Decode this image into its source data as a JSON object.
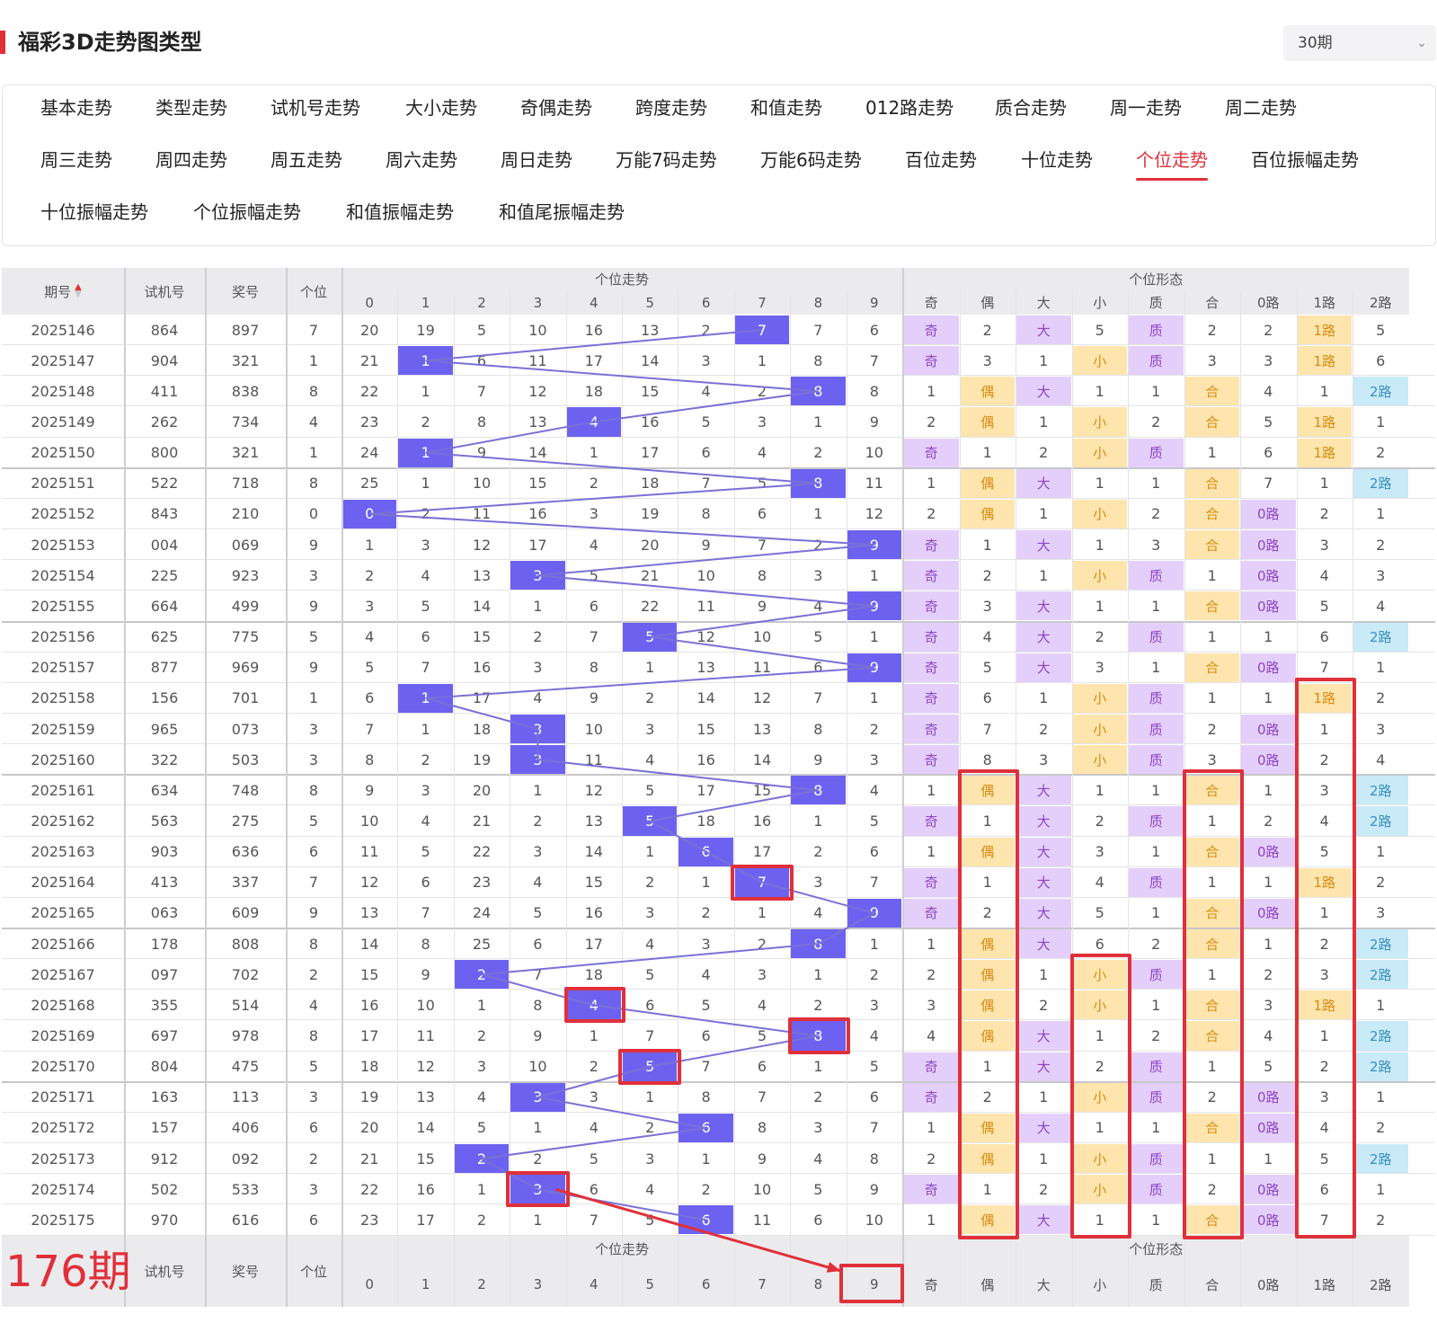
{
  "title": "福彩3D走势图类型",
  "period_select": {
    "value": "30期",
    "icon": "chevron-down-icon"
  },
  "tabs": {
    "items": [
      "基本走势",
      "类型走势",
      "试机号走势",
      "大小走势",
      "奇偶走势",
      "跨度走势",
      "和值走势",
      "012路走势",
      "质合走势",
      "周一走势",
      "周二走势",
      "周三走势",
      "周四走势",
      "周五走势",
      "周六走势",
      "周日走势",
      "万能7码走势",
      "万能6码走势",
      "百位走势",
      "十位走势",
      "个位走势",
      "百位振幅走势",
      "十位振幅走势",
      "个位振幅走势",
      "和值振幅走势",
      "和值尾振幅走势"
    ],
    "active": "个位走势"
  },
  "colors": {
    "accent": "#e0303a",
    "ball": "#6d62f0",
    "purple": "#e4cffa",
    "orange": "#fde5ad",
    "blue": "#c9eaf7"
  },
  "table": {
    "header": {
      "period": "期号",
      "sort_icon": "sort-arrows-icon",
      "test": "试机号",
      "prize": "奖号",
      "unit": "个位",
      "trend_group": "个位走势",
      "digits": [
        "0",
        "1",
        "2",
        "3",
        "4",
        "5",
        "6",
        "7",
        "8",
        "9"
      ],
      "form_group": "个位形态",
      "form_cols": [
        "奇",
        "偶",
        "大",
        "小",
        "质",
        "合",
        "0路",
        "1路",
        "2路"
      ]
    },
    "footer": {
      "count": "176期",
      "test": "试机号",
      "prize": "奖号",
      "unit": "个位",
      "trend_group": "个位走势",
      "digits": [
        "0",
        "1",
        "2",
        "3",
        "4",
        "5",
        "6",
        "7",
        "8",
        "9"
      ],
      "form_group": "个位形态",
      "form_cols": [
        "奇",
        "偶",
        "大",
        "小",
        "质",
        "合",
        "0路",
        "1路",
        "2路"
      ]
    },
    "rows": [
      {
        "p": "2025146",
        "t": "864",
        "z": "897",
        "u": "7",
        "d": [
          "20",
          "19",
          "5",
          "10",
          "16",
          "13",
          "2",
          "7",
          "7",
          "6"
        ],
        "f": [
          "奇",
          "2",
          "大",
          "5",
          "质",
          "2",
          "2",
          "1路",
          "5"
        ]
      },
      {
        "p": "2025147",
        "t": "904",
        "z": "321",
        "u": "1",
        "d": [
          "21",
          "1",
          "6",
          "11",
          "17",
          "14",
          "3",
          "1",
          "8",
          "7"
        ],
        "f": [
          "奇",
          "3",
          "1",
          "小",
          "质",
          "3",
          "3",
          "1路",
          "6"
        ]
      },
      {
        "p": "2025148",
        "t": "411",
        "z": "838",
        "u": "8",
        "d": [
          "22",
          "1",
          "7",
          "12",
          "18",
          "15",
          "4",
          "2",
          "8",
          "8"
        ],
        "f": [
          "1",
          "偶",
          "大",
          "1",
          "1",
          "合",
          "4",
          "1",
          "2路"
        ]
      },
      {
        "p": "2025149",
        "t": "262",
        "z": "734",
        "u": "4",
        "d": [
          "23",
          "2",
          "8",
          "13",
          "4",
          "16",
          "5",
          "3",
          "1",
          "9"
        ],
        "f": [
          "2",
          "偶",
          "1",
          "小",
          "2",
          "合",
          "5",
          "1路",
          "1"
        ]
      },
      {
        "p": "2025150",
        "t": "800",
        "z": "321",
        "u": "1",
        "d": [
          "24",
          "1",
          "9",
          "14",
          "1",
          "17",
          "6",
          "4",
          "2",
          "10"
        ],
        "f": [
          "奇",
          "1",
          "2",
          "小",
          "质",
          "1",
          "6",
          "1路",
          "2"
        ]
      },
      {
        "p": "2025151",
        "t": "522",
        "z": "718",
        "u": "8",
        "d": [
          "25",
          "1",
          "10",
          "15",
          "2",
          "18",
          "7",
          "5",
          "8",
          "11"
        ],
        "f": [
          "1",
          "偶",
          "大",
          "1",
          "1",
          "合",
          "7",
          "1",
          "2路"
        ]
      },
      {
        "p": "2025152",
        "t": "843",
        "z": "210",
        "u": "0",
        "d": [
          "0",
          "2",
          "11",
          "16",
          "3",
          "19",
          "8",
          "6",
          "1",
          "12"
        ],
        "f": [
          "2",
          "偶",
          "1",
          "小",
          "2",
          "合",
          "0路",
          "2",
          "1"
        ]
      },
      {
        "p": "2025153",
        "t": "004",
        "z": "069",
        "u": "9",
        "d": [
          "1",
          "3",
          "12",
          "17",
          "4",
          "20",
          "9",
          "7",
          "2",
          "9"
        ],
        "f": [
          "奇",
          "1",
          "大",
          "1",
          "3",
          "合",
          "0路",
          "3",
          "2"
        ]
      },
      {
        "p": "2025154",
        "t": "225",
        "z": "923",
        "u": "3",
        "d": [
          "2",
          "4",
          "13",
          "3",
          "5",
          "21",
          "10",
          "8",
          "3",
          "1"
        ],
        "f": [
          "奇",
          "2",
          "1",
          "小",
          "质",
          "1",
          "0路",
          "4",
          "3"
        ]
      },
      {
        "p": "2025155",
        "t": "664",
        "z": "499",
        "u": "9",
        "d": [
          "3",
          "5",
          "14",
          "1",
          "6",
          "22",
          "11",
          "9",
          "4",
          "9"
        ],
        "f": [
          "奇",
          "3",
          "大",
          "1",
          "1",
          "合",
          "0路",
          "5",
          "4"
        ]
      },
      {
        "p": "2025156",
        "t": "625",
        "z": "775",
        "u": "5",
        "d": [
          "4",
          "6",
          "15",
          "2",
          "7",
          "5",
          "12",
          "10",
          "5",
          "1"
        ],
        "f": [
          "奇",
          "4",
          "大",
          "2",
          "质",
          "1",
          "1",
          "6",
          "2路"
        ]
      },
      {
        "p": "2025157",
        "t": "877",
        "z": "969",
        "u": "9",
        "d": [
          "5",
          "7",
          "16",
          "3",
          "8",
          "1",
          "13",
          "11",
          "6",
          "9"
        ],
        "f": [
          "奇",
          "5",
          "大",
          "3",
          "1",
          "合",
          "0路",
          "7",
          "1"
        ]
      },
      {
        "p": "2025158",
        "t": "156",
        "z": "701",
        "u": "1",
        "d": [
          "6",
          "1",
          "17",
          "4",
          "9",
          "2",
          "14",
          "12",
          "7",
          "1"
        ],
        "f": [
          "奇",
          "6",
          "1",
          "小",
          "质",
          "1",
          "1",
          "1路",
          "2"
        ]
      },
      {
        "p": "2025159",
        "t": "965",
        "z": "073",
        "u": "3",
        "d": [
          "7",
          "1",
          "18",
          "3",
          "10",
          "3",
          "15",
          "13",
          "8",
          "2"
        ],
        "f": [
          "奇",
          "7",
          "2",
          "小",
          "质",
          "2",
          "0路",
          "1",
          "3"
        ]
      },
      {
        "p": "2025160",
        "t": "322",
        "z": "503",
        "u": "3",
        "d": [
          "8",
          "2",
          "19",
          "3",
          "11",
          "4",
          "16",
          "14",
          "9",
          "3"
        ],
        "f": [
          "奇",
          "8",
          "3",
          "小",
          "质",
          "3",
          "0路",
          "2",
          "4"
        ]
      },
      {
        "p": "2025161",
        "t": "634",
        "z": "748",
        "u": "8",
        "d": [
          "9",
          "3",
          "20",
          "1",
          "12",
          "5",
          "17",
          "15",
          "8",
          "4"
        ],
        "f": [
          "1",
          "偶",
          "大",
          "1",
          "1",
          "合",
          "1",
          "3",
          "2路"
        ]
      },
      {
        "p": "2025162",
        "t": "563",
        "z": "275",
        "u": "5",
        "d": [
          "10",
          "4",
          "21",
          "2",
          "13",
          "5",
          "18",
          "16",
          "1",
          "5"
        ],
        "f": [
          "奇",
          "1",
          "大",
          "2",
          "质",
          "1",
          "2",
          "4",
          "2路"
        ]
      },
      {
        "p": "2025163",
        "t": "903",
        "z": "636",
        "u": "6",
        "d": [
          "11",
          "5",
          "22",
          "3",
          "14",
          "1",
          "6",
          "17",
          "2",
          "6"
        ],
        "f": [
          "1",
          "偶",
          "大",
          "3",
          "1",
          "合",
          "0路",
          "5",
          "1"
        ]
      },
      {
        "p": "2025164",
        "t": "413",
        "z": "337",
        "u": "7",
        "d": [
          "12",
          "6",
          "23",
          "4",
          "15",
          "2",
          "1",
          "7",
          "3",
          "7"
        ],
        "f": [
          "奇",
          "1",
          "大",
          "4",
          "质",
          "1",
          "1",
          "1路",
          "2"
        ]
      },
      {
        "p": "2025165",
        "t": "063",
        "z": "609",
        "u": "9",
        "d": [
          "13",
          "7",
          "24",
          "5",
          "16",
          "3",
          "2",
          "1",
          "4",
          "9"
        ],
        "f": [
          "奇",
          "2",
          "大",
          "5",
          "1",
          "合",
          "0路",
          "1",
          "3"
        ]
      },
      {
        "p": "2025166",
        "t": "178",
        "z": "808",
        "u": "8",
        "d": [
          "14",
          "8",
          "25",
          "6",
          "17",
          "4",
          "3",
          "2",
          "8",
          "1"
        ],
        "f": [
          "1",
          "偶",
          "大",
          "6",
          "2",
          "合",
          "1",
          "2",
          "2路"
        ]
      },
      {
        "p": "2025167",
        "t": "097",
        "z": "702",
        "u": "2",
        "d": [
          "15",
          "9",
          "2",
          "7",
          "18",
          "5",
          "4",
          "3",
          "1",
          "2"
        ],
        "f": [
          "2",
          "偶",
          "1",
          "小",
          "质",
          "1",
          "2",
          "3",
          "2路"
        ]
      },
      {
        "p": "2025168",
        "t": "355",
        "z": "514",
        "u": "4",
        "d": [
          "16",
          "10",
          "1",
          "8",
          "4",
          "6",
          "5",
          "4",
          "2",
          "3"
        ],
        "f": [
          "3",
          "偶",
          "2",
          "小",
          "1",
          "合",
          "3",
          "1路",
          "1"
        ]
      },
      {
        "p": "2025169",
        "t": "697",
        "z": "978",
        "u": "8",
        "d": [
          "17",
          "11",
          "2",
          "9",
          "1",
          "7",
          "6",
          "5",
          "8",
          "4"
        ],
        "f": [
          "4",
          "偶",
          "大",
          "1",
          "2",
          "合",
          "4",
          "1",
          "2路"
        ]
      },
      {
        "p": "2025170",
        "t": "804",
        "z": "475",
        "u": "5",
        "d": [
          "18",
          "12",
          "3",
          "10",
          "2",
          "5",
          "7",
          "6",
          "1",
          "5"
        ],
        "f": [
          "奇",
          "1",
          "大",
          "2",
          "质",
          "1",
          "5",
          "2",
          "2路"
        ]
      },
      {
        "p": "2025171",
        "t": "163",
        "z": "113",
        "u": "3",
        "d": [
          "19",
          "13",
          "4",
          "3",
          "3",
          "1",
          "8",
          "7",
          "2",
          "6"
        ],
        "f": [
          "奇",
          "2",
          "1",
          "小",
          "质",
          "2",
          "0路",
          "3",
          "1"
        ]
      },
      {
        "p": "2025172",
        "t": "157",
        "z": "406",
        "u": "6",
        "d": [
          "20",
          "14",
          "5",
          "1",
          "4",
          "2",
          "6",
          "8",
          "3",
          "7"
        ],
        "f": [
          "1",
          "偶",
          "大",
          "1",
          "1",
          "合",
          "0路",
          "4",
          "2"
        ]
      },
      {
        "p": "2025173",
        "t": "912",
        "z": "092",
        "u": "2",
        "d": [
          "21",
          "15",
          "2",
          "2",
          "5",
          "3",
          "1",
          "9",
          "4",
          "8"
        ],
        "f": [
          "2",
          "偶",
          "1",
          "小",
          "质",
          "1",
          "1",
          "5",
          "2路"
        ]
      },
      {
        "p": "2025174",
        "t": "502",
        "z": "533",
        "u": "3",
        "d": [
          "22",
          "16",
          "1",
          "3",
          "6",
          "4",
          "2",
          "10",
          "5",
          "9"
        ],
        "f": [
          "奇",
          "1",
          "2",
          "小",
          "质",
          "2",
          "0路",
          "6",
          "1"
        ]
      },
      {
        "p": "2025175",
        "t": "970",
        "z": "616",
        "u": "6",
        "d": [
          "23",
          "17",
          "2",
          "1",
          "7",
          "5",
          "6",
          "11",
          "6",
          "10"
        ],
        "f": [
          "1",
          "偶",
          "大",
          "1",
          "1",
          "合",
          "0路",
          "7",
          "2"
        ]
      }
    ]
  }
}
